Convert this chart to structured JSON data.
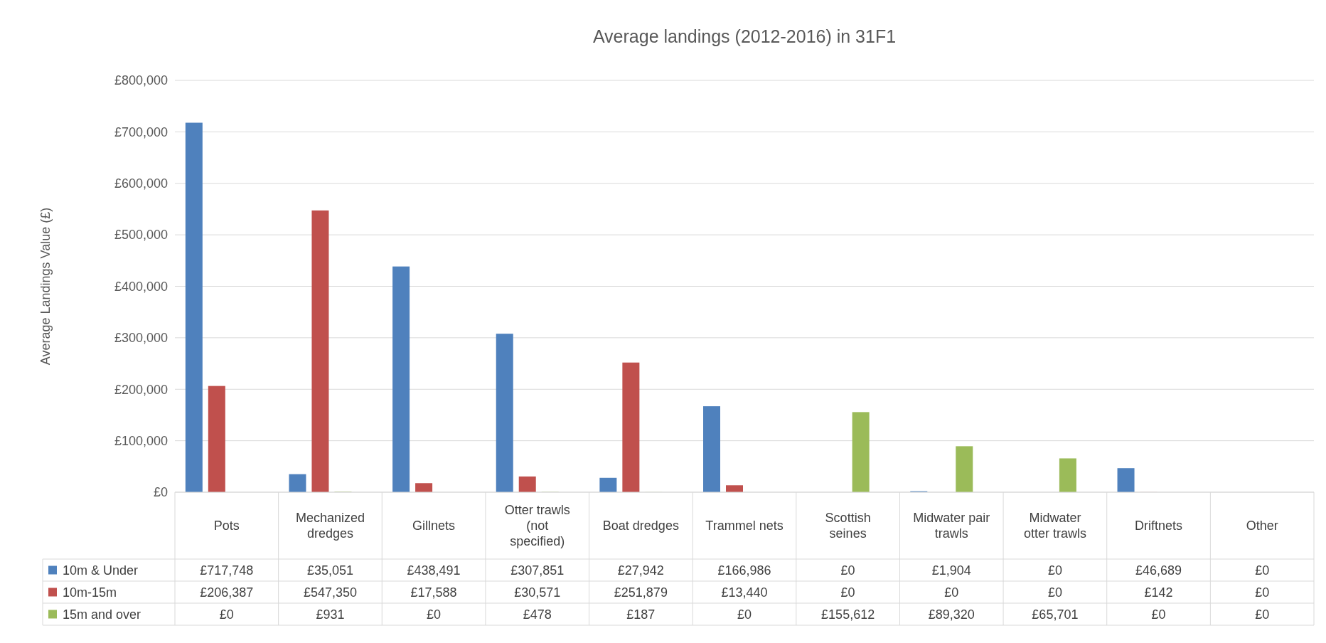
{
  "chart_data": {
    "type": "bar",
    "title": "Average landings (2012-2016) in 31F1",
    "ylabel": "Average Landings Value (£)",
    "categories": [
      "Pots",
      "Mechanized dredges",
      "Gillnets",
      "Otter trawls (not specified)",
      "Boat dredges",
      "Trammel nets",
      "Scottish seines",
      "Midwater pair trawls",
      "Midwater otter trawls",
      "Driftnets",
      "Other"
    ],
    "series": [
      {
        "name": "10m & Under",
        "color": "#4f81bd",
        "values": [
          717748,
          35051,
          438491,
          307851,
          27942,
          166986,
          0,
          1904,
          0,
          46689,
          0
        ],
        "value_labels": [
          "£717,748",
          "£35,051",
          "£438,491",
          "£307,851",
          "£27,942",
          "£166,986",
          "£0",
          "£1,904",
          "£0",
          "£46,689",
          "£0"
        ]
      },
      {
        "name": "10m-15m",
        "color": "#c0504d",
        "values": [
          206387,
          547350,
          17588,
          30571,
          251879,
          13440,
          0,
          0,
          0,
          142,
          0
        ],
        "value_labels": [
          "£206,387",
          "£547,350",
          "£17,588",
          "£30,571",
          "£251,879",
          "£13,440",
          "£0",
          "£0",
          "£0",
          "£142",
          "£0"
        ]
      },
      {
        "name": "15m and over",
        "color": "#9bbb59",
        "values": [
          0,
          931,
          0,
          478,
          187,
          0,
          155612,
          89320,
          65701,
          0,
          0
        ],
        "value_labels": [
          "£0",
          "£931",
          "£0",
          "£478",
          "£187",
          "£0",
          "£155,612",
          "£89,320",
          "£65,701",
          "£0",
          "£0"
        ]
      }
    ],
    "ylim": [
      0,
      800000
    ],
    "yticks": [
      {
        "value": 0,
        "label": "£0"
      },
      {
        "value": 100000,
        "label": "£100,000"
      },
      {
        "value": 200000,
        "label": "£200,000"
      },
      {
        "value": 300000,
        "label": "£300,000"
      },
      {
        "value": 400000,
        "label": "£400,000"
      },
      {
        "value": 500000,
        "label": "£500,000"
      },
      {
        "value": 600000,
        "label": "£600,000"
      },
      {
        "value": 700000,
        "label": "£700,000"
      },
      {
        "value": 800000,
        "label": "£800,000"
      }
    ],
    "grid": "y",
    "legend": "bottom"
  }
}
